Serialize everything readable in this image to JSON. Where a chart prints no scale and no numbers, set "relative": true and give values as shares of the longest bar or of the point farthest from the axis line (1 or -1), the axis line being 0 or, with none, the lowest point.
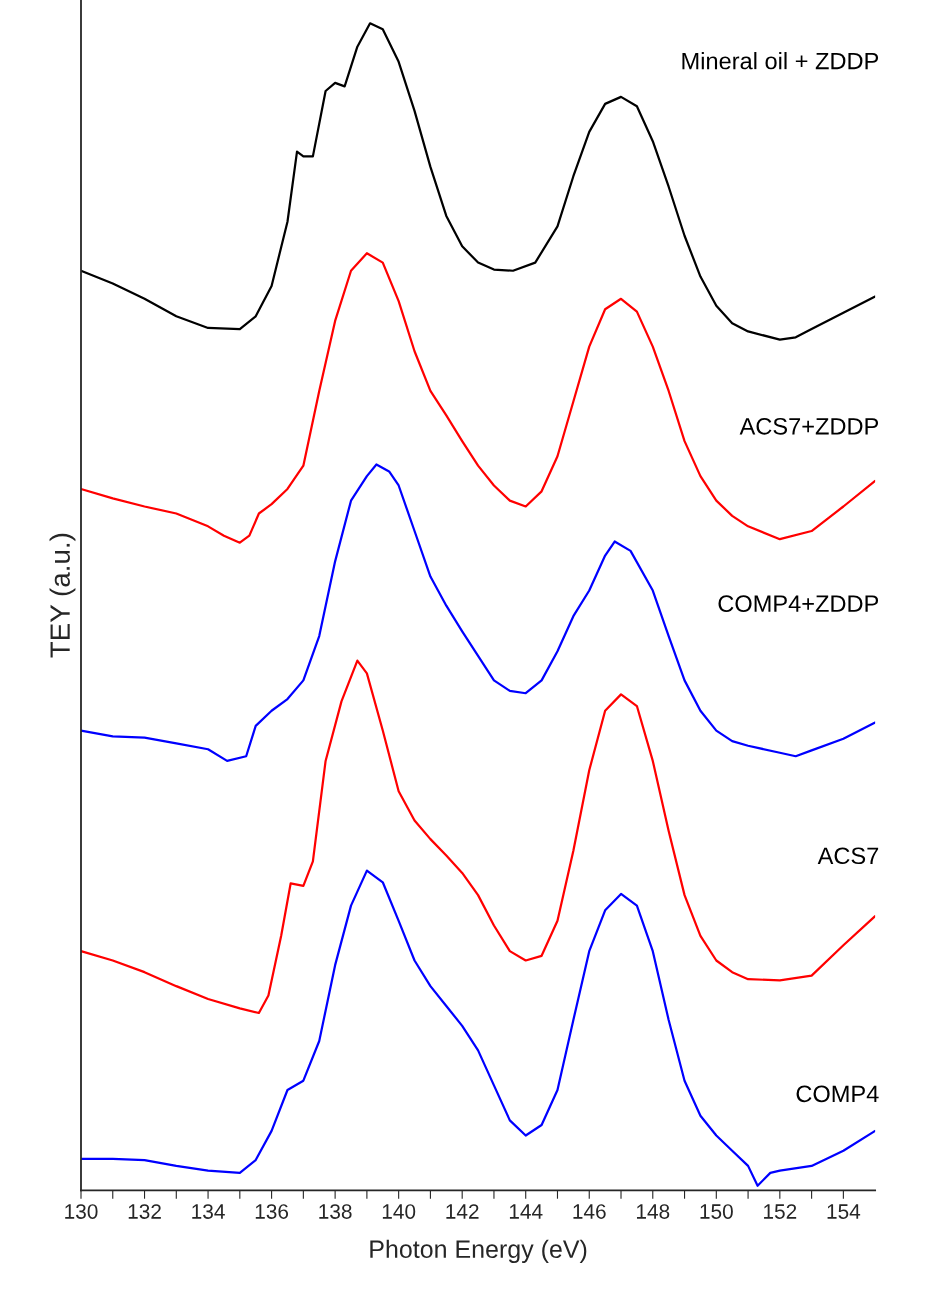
{
  "chart_data": {
    "type": "line",
    "xlabel": "Photon Energy (eV)",
    "ylabel": "TEY (a.u.)",
    "relative": true,
    "xlim": [
      130,
      155
    ],
    "xticks": [
      130,
      {
        "value": 131,
        "label": null
      },
      132,
      {
        "value": 133,
        "label": null
      },
      134,
      {
        "value": 135,
        "label": null
      },
      136,
      {
        "value": 137,
        "label": null
      },
      138,
      {
        "value": 139,
        "label": null
      },
      140,
      {
        "value": 141,
        "label": null
      },
      142,
      {
        "value": 143,
        "label": null
      },
      144,
      {
        "value": 145,
        "label": null
      },
      146,
      {
        "value": 147,
        "label": null
      },
      148,
      {
        "value": 149,
        "label": null
      },
      150,
      {
        "value": 151,
        "label": null
      },
      152,
      {
        "value": 153,
        "label": null
      },
      154
    ],
    "grid": false,
    "legend": false,
    "marker": "none",
    "line_style": "solid",
    "series": [
      {
        "name": "Mineral oil + ZDDP",
        "color": "#000000",
        "x": [
          130,
          131,
          132,
          133,
          134,
          135,
          135.5,
          136,
          136.5,
          136.8,
          137.0,
          137.3,
          137.7,
          138.0,
          138.3,
          138.7,
          139.1,
          139.5,
          140,
          140.5,
          141,
          141.5,
          142,
          142.5,
          143,
          143.6,
          144.3,
          145,
          145.5,
          146,
          146.5,
          147,
          147.5,
          148,
          148.5,
          149,
          149.5,
          150,
          150.5,
          151,
          152,
          152.5,
          153,
          154,
          155
        ],
        "values": [
          0.788,
          0.777,
          0.764,
          0.749,
          0.739,
          0.738,
          0.749,
          0.775,
          0.83,
          0.89,
          0.886,
          0.886,
          0.942,
          0.949,
          0.946,
          0.98,
          1.0,
          0.995,
          0.967,
          0.925,
          0.877,
          0.835,
          0.809,
          0.795,
          0.789,
          0.788,
          0.795,
          0.826,
          0.869,
          0.907,
          0.931,
          0.937,
          0.929,
          0.899,
          0.86,
          0.818,
          0.783,
          0.758,
          0.743,
          0.736,
          0.729,
          0.731,
          0.738,
          0.752,
          0.766
        ]
      },
      {
        "name": "ACS7+ZDDP",
        "color": "#ff0000",
        "x": [
          130,
          131,
          132,
          133,
          134,
          134.5,
          135,
          135.3,
          135.6,
          136,
          136.5,
          137,
          137.5,
          138,
          138.5,
          139,
          139.5,
          140,
          140.5,
          141,
          141.5,
          142,
          142.5,
          143,
          143.5,
          144,
          144.5,
          145,
          145.5,
          146,
          146.5,
          147,
          147.5,
          148,
          148.5,
          149,
          149.5,
          150,
          150.5,
          151,
          152,
          153,
          154,
          155
        ],
        "values": [
          0.601,
          0.593,
          0.586,
          0.58,
          0.569,
          0.561,
          0.555,
          0.561,
          0.58,
          0.588,
          0.601,
          0.621,
          0.685,
          0.745,
          0.788,
          0.803,
          0.795,
          0.762,
          0.719,
          0.685,
          0.664,
          0.642,
          0.621,
          0.604,
          0.591,
          0.586,
          0.599,
          0.629,
          0.676,
          0.723,
          0.755,
          0.764,
          0.753,
          0.723,
          0.685,
          0.642,
          0.612,
          0.591,
          0.578,
          0.569,
          0.558,
          0.565,
          0.586,
          0.608
        ]
      },
      {
        "name": "COMP4+ZDDP",
        "color": "#0000ff",
        "x": [
          130,
          131,
          132,
          133,
          134,
          134.6,
          135.2,
          135.5,
          136,
          136.5,
          137,
          137.5,
          138,
          138.5,
          139,
          139.3,
          139.7,
          140,
          140.5,
          141,
          141.5,
          142,
          142.5,
          143,
          143.5,
          144,
          144.5,
          145,
          145.5,
          146,
          146.5,
          146.8,
          147.3,
          148,
          148.5,
          149,
          149.5,
          150,
          150.5,
          151,
          152,
          152.5,
          153,
          154,
          155
        ],
        "values": [
          0.394,
          0.389,
          0.388,
          0.383,
          0.378,
          0.368,
          0.372,
          0.398,
          0.411,
          0.421,
          0.437,
          0.475,
          0.539,
          0.591,
          0.612,
          0.622,
          0.616,
          0.604,
          0.565,
          0.526,
          0.501,
          0.479,
          0.458,
          0.437,
          0.428,
          0.426,
          0.437,
          0.462,
          0.492,
          0.514,
          0.544,
          0.556,
          0.548,
          0.514,
          0.475,
          0.437,
          0.411,
          0.394,
          0.385,
          0.381,
          0.375,
          0.372,
          0.377,
          0.387,
          0.401
        ]
      },
      {
        "name": "ACS7",
        "color": "#ff0000",
        "x": [
          130,
          131,
          132,
          133,
          134,
          135,
          135.6,
          135.9,
          136.3,
          136.6,
          137,
          137.3,
          137.7,
          138.2,
          138.7,
          139,
          139.5,
          140,
          140.5,
          141,
          141.5,
          142,
          142.5,
          143,
          143.5,
          144,
          144.5,
          145,
          145.5,
          146,
          146.5,
          147,
          147.5,
          148,
          148.5,
          149,
          149.5,
          150,
          150.5,
          151,
          152,
          153,
          154,
          155
        ],
        "values": [
          0.205,
          0.197,
          0.187,
          0.175,
          0.164,
          0.156,
          0.152,
          0.167,
          0.218,
          0.263,
          0.261,
          0.282,
          0.368,
          0.419,
          0.454,
          0.443,
          0.394,
          0.342,
          0.317,
          0.301,
          0.287,
          0.272,
          0.253,
          0.227,
          0.205,
          0.197,
          0.201,
          0.231,
          0.291,
          0.36,
          0.411,
          0.425,
          0.415,
          0.368,
          0.308,
          0.253,
          0.218,
          0.197,
          0.187,
          0.181,
          0.18,
          0.184,
          0.21,
          0.235
        ]
      },
      {
        "name": "COMP4",
        "color": "#0000ff",
        "x": [
          130,
          131,
          132,
          133,
          134,
          135,
          135.5,
          136,
          136.5,
          137,
          137.5,
          138,
          138.5,
          139,
          139.5,
          140,
          140.5,
          141,
          141.5,
          142,
          142.5,
          143,
          143.5,
          144,
          144.5,
          145,
          145.5,
          146,
          146.5,
          147,
          147.5,
          148,
          148.5,
          149,
          149.5,
          150,
          150.5,
          151,
          151.3,
          151.7,
          152,
          153,
          154,
          155
        ],
        "values": [
          0.027,
          0.027,
          0.026,
          0.021,
          0.017,
          0.015,
          0.026,
          0.051,
          0.086,
          0.094,
          0.128,
          0.193,
          0.244,
          0.274,
          0.264,
          0.231,
          0.197,
          0.175,
          0.158,
          0.141,
          0.12,
          0.09,
          0.06,
          0.047,
          0.056,
          0.086,
          0.146,
          0.205,
          0.24,
          0.254,
          0.244,
          0.205,
          0.146,
          0.094,
          0.064,
          0.047,
          0.034,
          0.021,
          0.004,
          0.015,
          0.017,
          0.021,
          0.034,
          0.051
        ]
      }
    ]
  }
}
